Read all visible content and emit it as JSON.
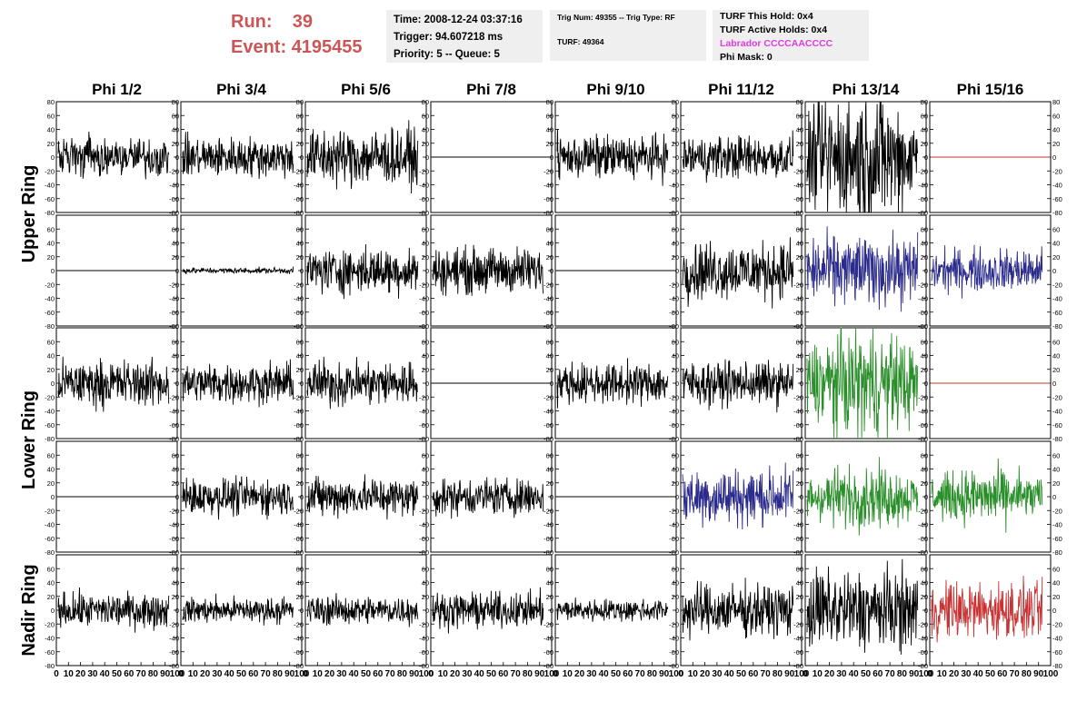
{
  "header": {
    "run_label": "Run:",
    "run_value": "39",
    "event_label": "Event:",
    "event_value": "4195455",
    "time": "Time: 2008-12-24 03:37:16",
    "trigger": "Trigger: 94.607218 ms",
    "priority": "Priority: 5 -- Queue: 5",
    "trig_num": "Trig Num: 49355 -- Trig Type: RF",
    "turf": "TURF: 49364",
    "turf_hold": "TURF This Hold: 0x4",
    "turf_active": "TURF Active Holds: 0x4",
    "labrador": "Labrador CCCCAACCCC",
    "phi_mask": "Phi Mask: 0"
  },
  "chart_data": {
    "type": "line",
    "columns": [
      "Phi 1/2",
      "Phi 3/4",
      "Phi 5/6",
      "Phi 7/8",
      "Phi 9/10",
      "Phi 11/12",
      "Phi 13/14",
      "Phi 15/16"
    ],
    "ring_labels": [
      "Upper Ring",
      "Lower Ring",
      "Nadir Ring"
    ],
    "ylim": [
      -80,
      80
    ],
    "yticks": [
      "80",
      "60",
      "40",
      "20",
      "0",
      "-20",
      "-40",
      "-60",
      "-80"
    ],
    "xlim": [
      0,
      100
    ],
    "xticks": [
      "0",
      "10",
      "20",
      "30",
      "40",
      "50",
      "60",
      "70",
      "80",
      "90",
      "100"
    ],
    "colors": {
      "black": "#000000",
      "blue": "#2b2b8c",
      "green": "#2a8f2a",
      "red": "#c83232"
    },
    "panels": [
      [
        "black:14",
        "black:14",
        "black:20",
        "flat:black",
        "black:15",
        "black:15",
        "black:44",
        "flat:red"
      ],
      [
        "flat:black",
        "black:2",
        "black:16",
        "black:16",
        "flat:black",
        "black:20",
        "blue:24",
        "blue:15"
      ],
      [
        "black:16",
        "black:14",
        "black:16",
        "flat:black",
        "black:14",
        "black:15",
        "green:35",
        "flat:red"
      ],
      [
        "flat:black",
        "black:13",
        "black:14",
        "black:13",
        "flat:black",
        "blue:20",
        "green:20",
        "green:18"
      ],
      [
        "black:12",
        "black:9",
        "black:10",
        "black:12",
        "black:8",
        "black:18",
        "black:28",
        "red:20"
      ]
    ]
  }
}
